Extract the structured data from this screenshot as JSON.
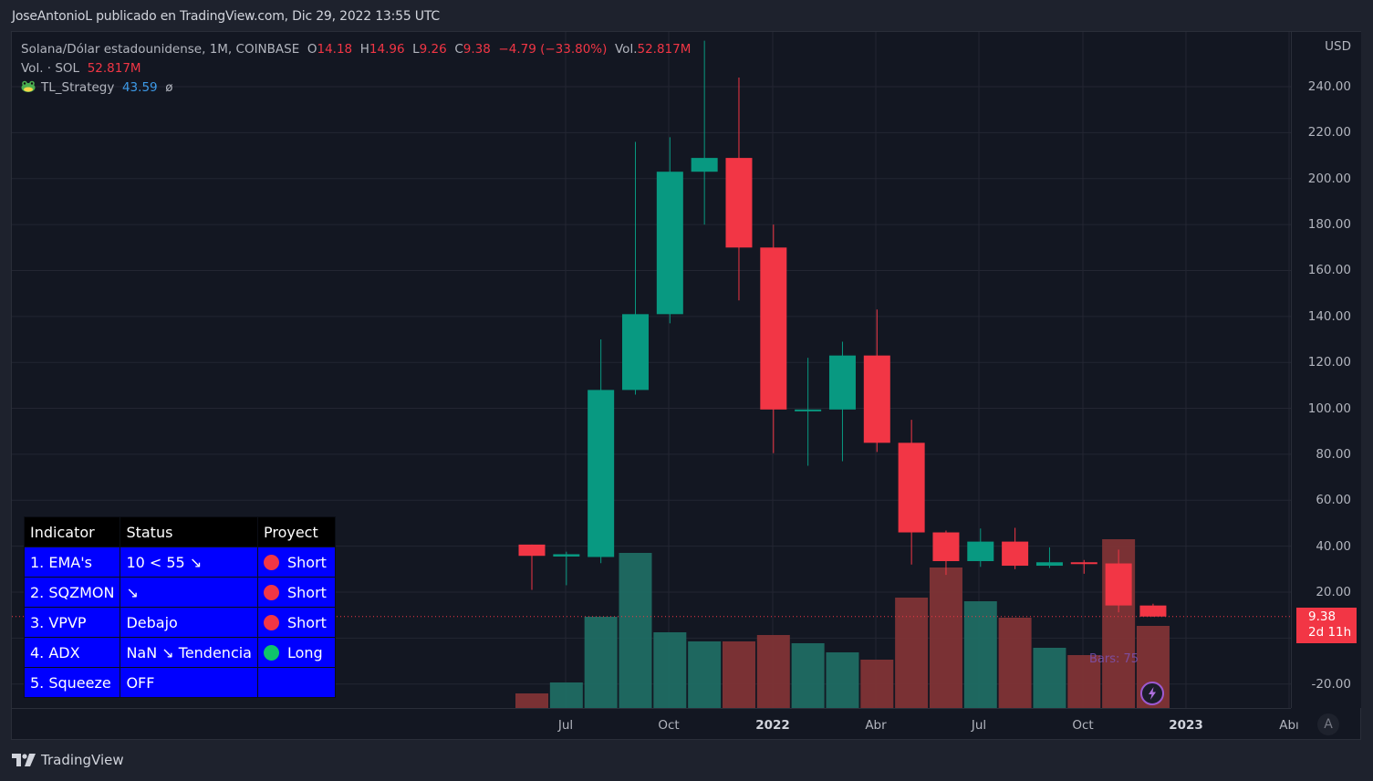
{
  "header": {
    "attribution": "JoseAntonioL publicado en TradingView.com, Dic 29, 2022 13:55 UTC"
  },
  "legend": {
    "symbol": "Solana/Dólar estadounidense, 1M, COINBASE",
    "o_label": "O",
    "o_value": "14.18",
    "h_label": "H",
    "h_value": "14.96",
    "l_label": "L",
    "l_value": "9.26",
    "c_label": "C",
    "c_value": "9.38",
    "change": "−4.79 (−33.80%)",
    "vol_label": "Vol.",
    "vol_value": "52.817M",
    "vol_row_label": "Vol. · SOL",
    "vol_row_value": "52.817M",
    "indicator_name": "TL_Strategy",
    "indicator_value": "43.59",
    "indicator_extra": "ø"
  },
  "indicator_table": {
    "headers": [
      "Indicator",
      "Status",
      "Proyect"
    ],
    "rows": [
      {
        "indicator": "1. EMA's",
        "status": "10 < 55 ↘",
        "proyect": "Short",
        "dot": "#f23645"
      },
      {
        "indicator": "2. SQZMON",
        "status": " ↘",
        "proyect": "Short",
        "dot": "#f23645"
      },
      {
        "indicator": "3. VPVP",
        "status": "Debajo",
        "proyect": "Short",
        "dot": "#f23645"
      },
      {
        "indicator": "4. ADX",
        "status": "NaN ↘ Tendencia",
        "proyect": "Long",
        "dot": "#0ec36b"
      },
      {
        "indicator": "5. Squeeze",
        "status": "OFF",
        "proyect": "",
        "dot": ""
      }
    ]
  },
  "y_axis": {
    "currency": "USD",
    "ticks": [
      "240.00",
      "220.00",
      "200.00",
      "180.00",
      "160.00",
      "140.00",
      "120.00",
      "100.00",
      "80.00",
      "60.00",
      "40.00",
      "20.00",
      "-20.00"
    ]
  },
  "x_axis": {
    "ticks": [
      {
        "label": "Jul",
        "bold": false
      },
      {
        "label": "Oct",
        "bold": false
      },
      {
        "label": "2022",
        "bold": true
      },
      {
        "label": "Abr",
        "bold": false
      },
      {
        "label": "Jul",
        "bold": false
      },
      {
        "label": "Oct",
        "bold": false
      },
      {
        "label": "2023",
        "bold": true
      },
      {
        "label": "Abı",
        "bold": false
      }
    ]
  },
  "price_tag": {
    "price": "9.38",
    "countdown": "2d 11h"
  },
  "auto_button": "A",
  "bars_label": "Bars: 75",
  "footer": {
    "brand": "TradingView"
  },
  "colors": {
    "up": "#089981",
    "down": "#f23645",
    "vol_up": "#1f6b63",
    "vol_down": "#7f3336",
    "table_bg": "#0000ff"
  },
  "chart_data": {
    "type": "candlestick",
    "title": "Solana/Dólar estadounidense, 1M, COINBASE",
    "xlabel": "",
    "ylabel": "USD",
    "ylim": [
      -20,
      260
    ],
    "categories": [
      "2021-06",
      "2021-07",
      "2021-08",
      "2021-09",
      "2021-10",
      "2021-11",
      "2021-12",
      "2022-01",
      "2022-02",
      "2022-03",
      "2022-04",
      "2022-05",
      "2022-06",
      "2022-07",
      "2022-08",
      "2022-09",
      "2022-10",
      "2022-11",
      "2022-12"
    ],
    "open": [
      40.7,
      35.5,
      35.3,
      108,
      141,
      203,
      209,
      170,
      99.5,
      99.5,
      123,
      85,
      46,
      33.5,
      42,
      31.5,
      33,
      32.5,
      14.18
    ],
    "high": [
      40.7,
      37.6,
      130,
      216,
      218,
      260,
      244,
      180,
      122,
      129,
      143,
      95,
      46.8,
      47.7,
      48,
      39.5,
      34,
      38.5,
      14.96
    ],
    "low": [
      21,
      23,
      32.6,
      106,
      137,
      180,
      147,
      80.5,
      75,
      77,
      81,
      32,
      27.5,
      31,
      30,
      30.5,
      28,
      11.2,
      9.26
    ],
    "close": [
      35.8,
      36.5,
      108,
      141,
      203,
      209,
      170,
      99.5,
      99.5,
      123,
      85,
      46,
      33.5,
      42,
      31.5,
      33,
      32.5,
      14.2,
      9.38
    ],
    "volume_relative": [
      16,
      28,
      100,
      170,
      83,
      73,
      73,
      80,
      71,
      61,
      53,
      121,
      154,
      117,
      99,
      66,
      58,
      185,
      90
    ],
    "grid": true,
    "last_price": 9.38
  }
}
